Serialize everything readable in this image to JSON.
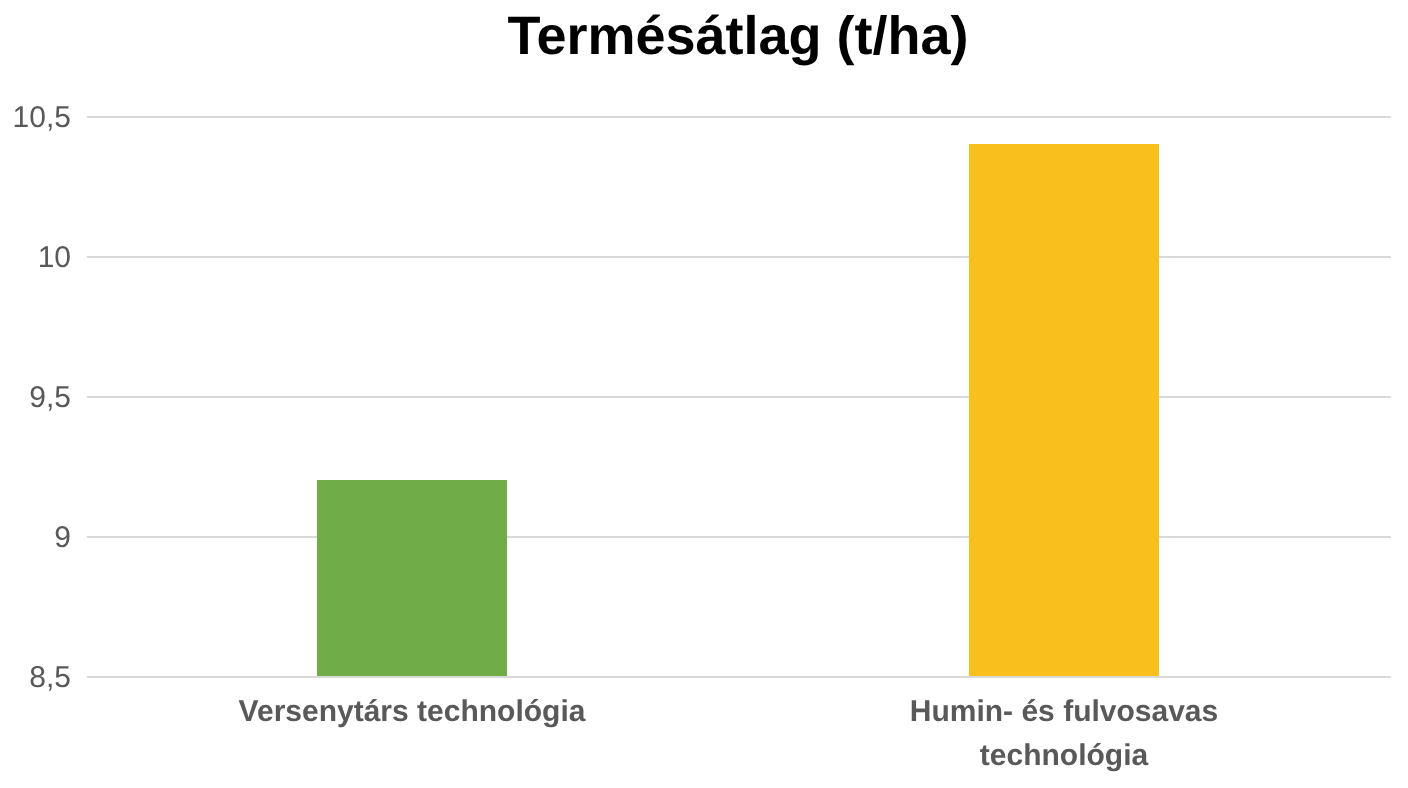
{
  "chart_data": {
    "type": "bar",
    "title": "Termésátlag (t/ha)",
    "categories": [
      "Versenytárs technológia",
      "Humin- és fulvosavas\ntechnológia"
    ],
    "values": [
      9.2,
      10.4
    ],
    "colors": [
      "#70ad47",
      "#f9bf1c"
    ],
    "ylim": [
      8.5,
      10.5
    ],
    "yticks": [
      {
        "value": 8.5,
        "label": "8,5"
      },
      9,
      {
        "value": 9.5,
        "label": "9,5"
      },
      10,
      {
        "value": 10.5,
        "label": "10,5"
      }
    ],
    "grid": "y"
  }
}
